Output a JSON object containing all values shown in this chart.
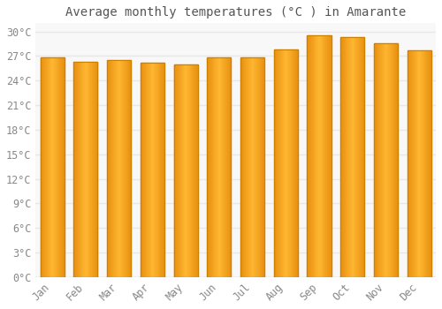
{
  "title": "Average monthly temperatures (°C ) in Amarante",
  "months": [
    "Jan",
    "Feb",
    "Mar",
    "Apr",
    "May",
    "Jun",
    "Jul",
    "Aug",
    "Sep",
    "Oct",
    "Nov",
    "Dec"
  ],
  "values": [
    26.8,
    26.3,
    26.5,
    26.2,
    26.0,
    26.8,
    26.8,
    27.8,
    29.5,
    29.3,
    28.5,
    27.7
  ],
  "bar_color_light": "#FFB732",
  "bar_color_dark": "#E89010",
  "bar_edge_color": "#CC8000",
  "ylim": [
    0,
    31
  ],
  "yticks": [
    0,
    3,
    6,
    9,
    12,
    15,
    18,
    21,
    24,
    27,
    30
  ],
  "ytick_labels": [
    "0°C",
    "3°C",
    "6°C",
    "9°C",
    "12°C",
    "15°C",
    "18°C",
    "21°C",
    "24°C",
    "27°C",
    "30°C"
  ],
  "background_color": "#ffffff",
  "plot_bg_color": "#f8f8f8",
  "grid_color": "#e8e8e8",
  "title_fontsize": 10,
  "tick_fontsize": 8.5,
  "bar_width": 0.72
}
